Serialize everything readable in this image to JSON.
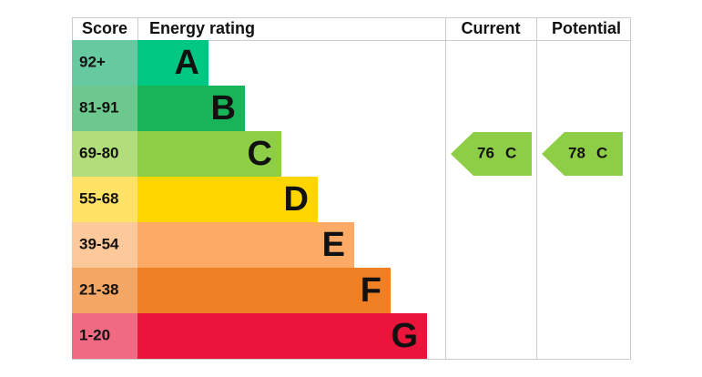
{
  "chart_data": {
    "type": "epc",
    "headers": {
      "score": "Score",
      "rating": "Energy rating",
      "current": "Current",
      "potential": "Potential"
    },
    "bands": [
      {
        "score": "92+",
        "letter": "A",
        "color": "#00c781",
        "score_color": "#66c9a0"
      },
      {
        "score": "81-91",
        "letter": "B",
        "color": "#19b459",
        "score_color": "#6dc88d"
      },
      {
        "score": "69-80",
        "letter": "C",
        "color": "#8dce46",
        "score_color": "#b2dd7b"
      },
      {
        "score": "55-68",
        "letter": "D",
        "color": "#ffd500",
        "score_color": "#ffe266"
      },
      {
        "score": "39-54",
        "letter": "E",
        "color": "#fcaa65",
        "score_color": "#fdc89a"
      },
      {
        "score": "21-38",
        "letter": "F",
        "color": "#ef8023",
        "score_color": "#f4a765"
      },
      {
        "score": "1-20",
        "letter": "G",
        "color": "#e9153b",
        "score_color": "#ef6a82"
      }
    ],
    "current": {
      "value": 76,
      "band": "C"
    },
    "potential": {
      "value": 78,
      "band": "C"
    }
  }
}
